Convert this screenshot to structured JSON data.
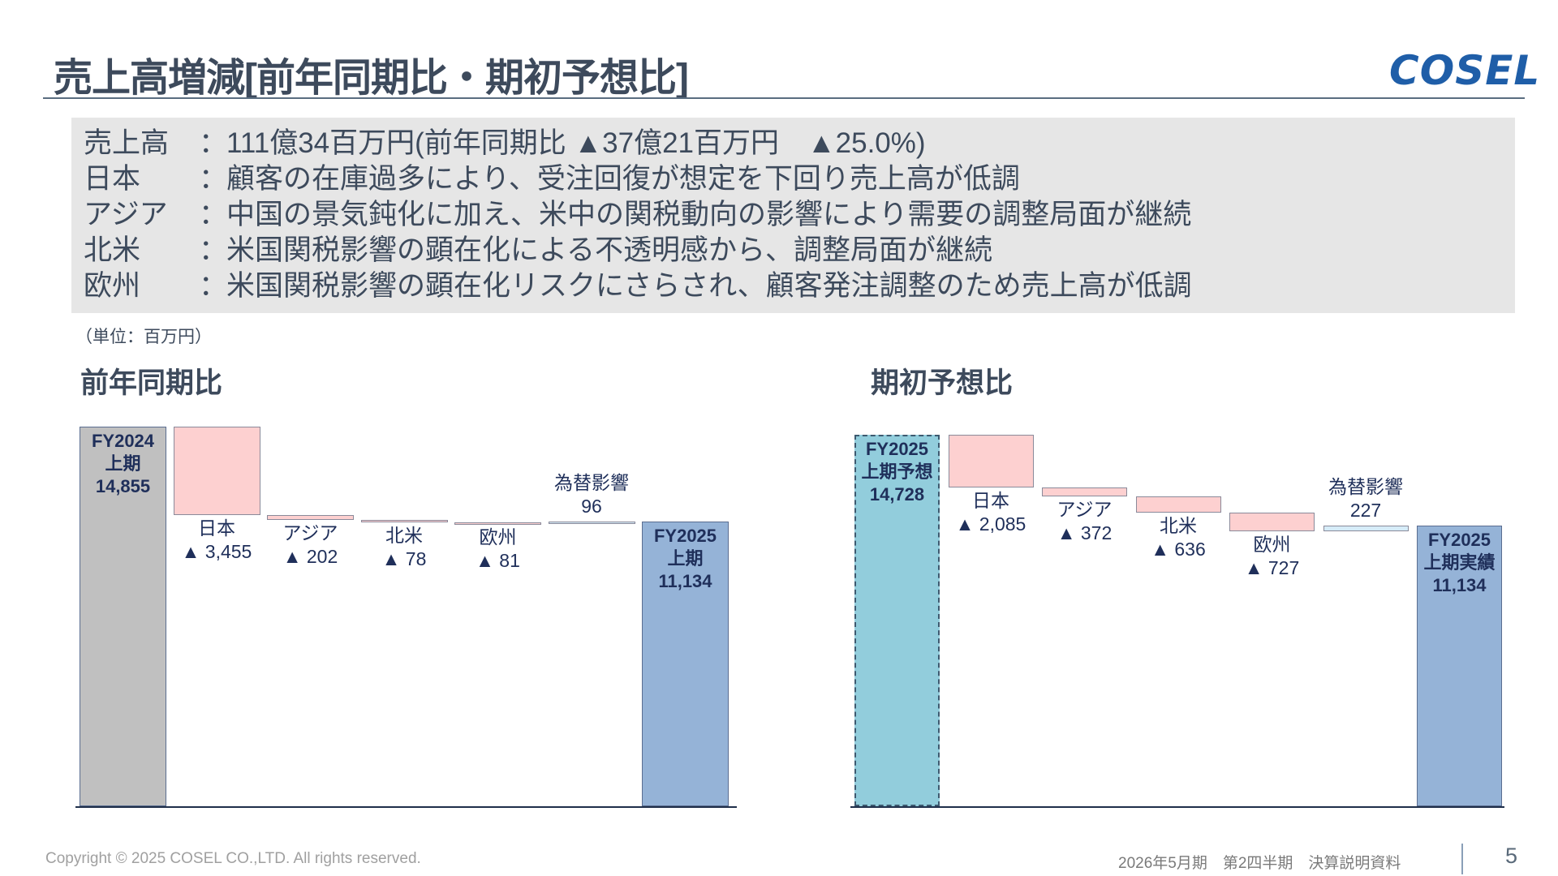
{
  "header": {
    "title": "売上高増減[前年同期比・期初予想比]",
    "logo": "COSEL"
  },
  "summary": [
    {
      "label": "売上高",
      "colon": "：",
      "text": "111億34百万円(前年同期比 ▲37億21百万円　▲25.0%)"
    },
    {
      "label": "日本",
      "colon": "：",
      "text": "顧客の在庫過多により、受注回復が想定を下回り売上高が低調"
    },
    {
      "label": "アジア",
      "colon": "：",
      "text": "中国の景気鈍化に加え、米中の関税動向の影響により需要の調整局面が継続"
    },
    {
      "label": "北米",
      "colon": "：",
      "text": "米国関税影響の顕在化による不透明感から、調整局面が継続"
    },
    {
      "label": "欧州",
      "colon": "：",
      "text": "米国関税影響の顕在化リスクにさらされ、顧客発注調整のため売上高が低調"
    }
  ],
  "unit_note": "（単位：百万円）",
  "colors": {
    "decrease": "#fdd0d0",
    "increase": "#d6ecf8",
    "start_left": "#c0c0c0",
    "start_right": "#92cddc",
    "end": "#95b3d7",
    "text_dark": "#1f2f5a"
  },
  "chart_data": [
    {
      "type": "bar",
      "subtype": "waterfall",
      "title": "前年同期比",
      "start": {
        "lines": [
          "FY2024",
          "上期",
          "14,855"
        ],
        "value": 14855
      },
      "steps": [
        {
          "name": "日本",
          "value_label": "▲ 3,455",
          "value": -3455
        },
        {
          "name": "アジア",
          "value_label": "▲ 202",
          "value": -202
        },
        {
          "name": "北米",
          "value_label": "▲ 78",
          "value": -78
        },
        {
          "name": "欧州",
          "value_label": "▲ 81",
          "value": -81
        },
        {
          "name": "為替影響",
          "value_label": "96",
          "value": 96
        }
      ],
      "end": {
        "lines": [
          "FY2025",
          "上期",
          "11,134"
        ],
        "value": 11134
      }
    },
    {
      "type": "bar",
      "subtype": "waterfall",
      "title": "期初予想比",
      "start": {
        "lines": [
          "FY2025",
          "上期予想",
          "14,728"
        ],
        "value": 14728
      },
      "steps": [
        {
          "name": "日本",
          "value_label": "▲ 2,085",
          "value": -2085
        },
        {
          "name": "アジア",
          "value_label": "▲ 372",
          "value": -372
        },
        {
          "name": "北米",
          "value_label": "▲ 636",
          "value": -636
        },
        {
          "name": "欧州",
          "value_label": "▲ 727",
          "value": -727
        },
        {
          "name": "為替影響",
          "value_label": "227",
          "value": 227
        }
      ],
      "end": {
        "lines": [
          "FY2025",
          "上期実績",
          "11,134"
        ],
        "value": 11134
      }
    }
  ],
  "footer": {
    "copyright": "Copyright © 2025 COSEL CO.,LTD. All rights reserved.",
    "doc": "2026年5月期　第2四半期　決算説明資料",
    "page": "5"
  }
}
